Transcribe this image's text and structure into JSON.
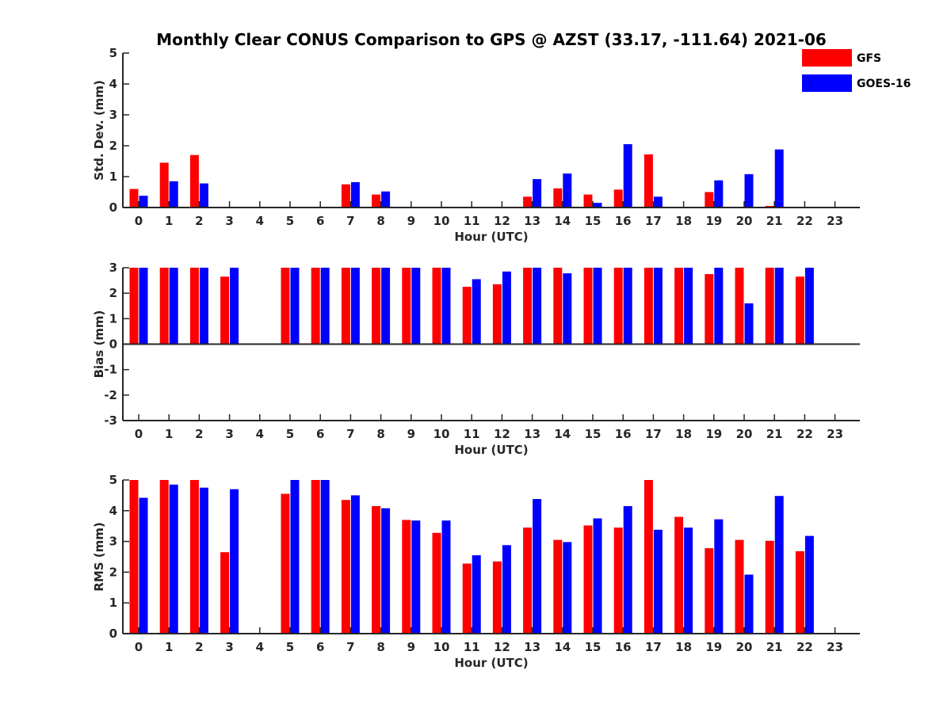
{
  "title": "Monthly Clear CONUS Comparison to GPS @ AZST (33.17, -111.64) 2021-06",
  "legend": {
    "placement": "top-right",
    "entries": [
      {
        "name": "GFS",
        "color": "#ff0000"
      },
      {
        "name": "GOES-16",
        "color": "#0000ff"
      }
    ]
  },
  "chart_data": [
    {
      "type": "bar",
      "xlabel": "Hour (UTC)",
      "ylabel": "Std. Dev. (mm)",
      "ylim": [
        0,
        5
      ],
      "yticks": [
        "0",
        "1",
        "2",
        "3",
        "4",
        "5"
      ],
      "categories": [
        "0",
        "1",
        "2",
        "3",
        "4",
        "5",
        "6",
        "7",
        "8",
        "9",
        "10",
        "11",
        "12",
        "13",
        "14",
        "15",
        "16",
        "17",
        "18",
        "19",
        "20",
        "21",
        "22",
        "23"
      ],
      "series": [
        {
          "name": "GFS",
          "values": [
            0.6,
            1.45,
            1.7,
            null,
            null,
            null,
            null,
            0.75,
            0.42,
            null,
            null,
            null,
            null,
            0.35,
            0.62,
            0.42,
            0.58,
            1.72,
            null,
            0.5,
            null,
            0.05,
            null,
            null
          ]
        },
        {
          "name": "GOES-16",
          "values": [
            0.38,
            0.85,
            0.78,
            null,
            null,
            null,
            null,
            0.82,
            0.52,
            null,
            null,
            null,
            null,
            0.92,
            1.1,
            0.15,
            2.05,
            0.35,
            null,
            0.88,
            1.08,
            1.88,
            null,
            null
          ]
        }
      ]
    },
    {
      "type": "bar",
      "xlabel": "Hour (UTC)",
      "ylabel": "Bias (mm)",
      "ylim": [
        -3,
        3
      ],
      "yticks": [
        "-3",
        "-2",
        "-1",
        "0",
        "1",
        "2",
        "3"
      ],
      "categories": [
        "0",
        "1",
        "2",
        "3",
        "4",
        "5",
        "6",
        "7",
        "8",
        "9",
        "10",
        "11",
        "12",
        "13",
        "14",
        "15",
        "16",
        "17",
        "18",
        "19",
        "20",
        "21",
        "22",
        "23"
      ],
      "series": [
        {
          "name": "GFS",
          "values": [
            3,
            3,
            3,
            2.65,
            null,
            3,
            3,
            3,
            3,
            3,
            3,
            2.25,
            2.35,
            3,
            3,
            3,
            3,
            3,
            3,
            2.75,
            3,
            3,
            2.65,
            null
          ]
        },
        {
          "name": "GOES-16",
          "values": [
            3,
            3,
            3,
            3,
            null,
            3,
            3,
            3,
            3,
            3,
            3,
            2.55,
            2.85,
            3,
            2.78,
            3,
            3,
            3,
            3,
            3,
            1.6,
            3,
            3,
            null
          ]
        }
      ]
    },
    {
      "type": "bar",
      "xlabel": "Hour (UTC)",
      "ylabel": "RMS (mm)",
      "ylim": [
        0,
        5
      ],
      "yticks": [
        "0",
        "1",
        "2",
        "3",
        "4",
        "5"
      ],
      "categories": [
        "0",
        "1",
        "2",
        "3",
        "4",
        "5",
        "6",
        "7",
        "8",
        "9",
        "10",
        "11",
        "12",
        "13",
        "14",
        "15",
        "16",
        "17",
        "18",
        "19",
        "20",
        "21",
        "22",
        "23"
      ],
      "series": [
        {
          "name": "GFS",
          "values": [
            5,
            5,
            5,
            2.65,
            null,
            4.55,
            5,
            4.35,
            4.15,
            3.7,
            3.28,
            2.28,
            2.35,
            3.45,
            3.05,
            3.52,
            3.45,
            5,
            3.8,
            2.78,
            3.05,
            3.02,
            2.68,
            null
          ]
        },
        {
          "name": "GOES-16",
          "values": [
            4.42,
            4.85,
            4.75,
            4.7,
            null,
            5,
            5,
            4.5,
            4.08,
            3.68,
            3.68,
            2.55,
            2.88,
            4.38,
            2.98,
            3.75,
            4.15,
            3.38,
            3.45,
            3.72,
            1.92,
            4.48,
            3.18,
            null
          ]
        }
      ]
    }
  ]
}
